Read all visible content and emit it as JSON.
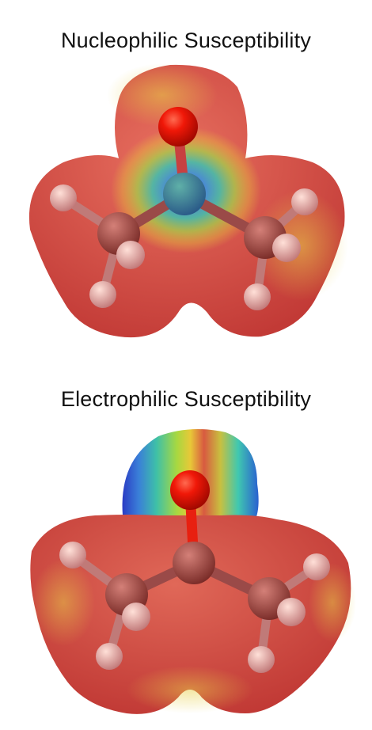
{
  "panels": [
    {
      "title": "Nucleophilic Susceptibility",
      "surface_highlight": "central-carbon",
      "colors": {
        "surface": "#d84a44",
        "oxygen": "#ee1100",
        "carbon": "#a84840",
        "hydrogen": "#eaa6a6",
        "highlight_center": "#2c46c8"
      }
    },
    {
      "title": "Electrophilic Susceptibility",
      "surface_highlight": "oxygen-lone-pairs",
      "colors": {
        "surface": "#d84a44",
        "oxygen": "#ee1100",
        "carbon": "#a84840",
        "hydrogen": "#eaa6a6",
        "highlight_center": "#2c46c8"
      }
    }
  ]
}
